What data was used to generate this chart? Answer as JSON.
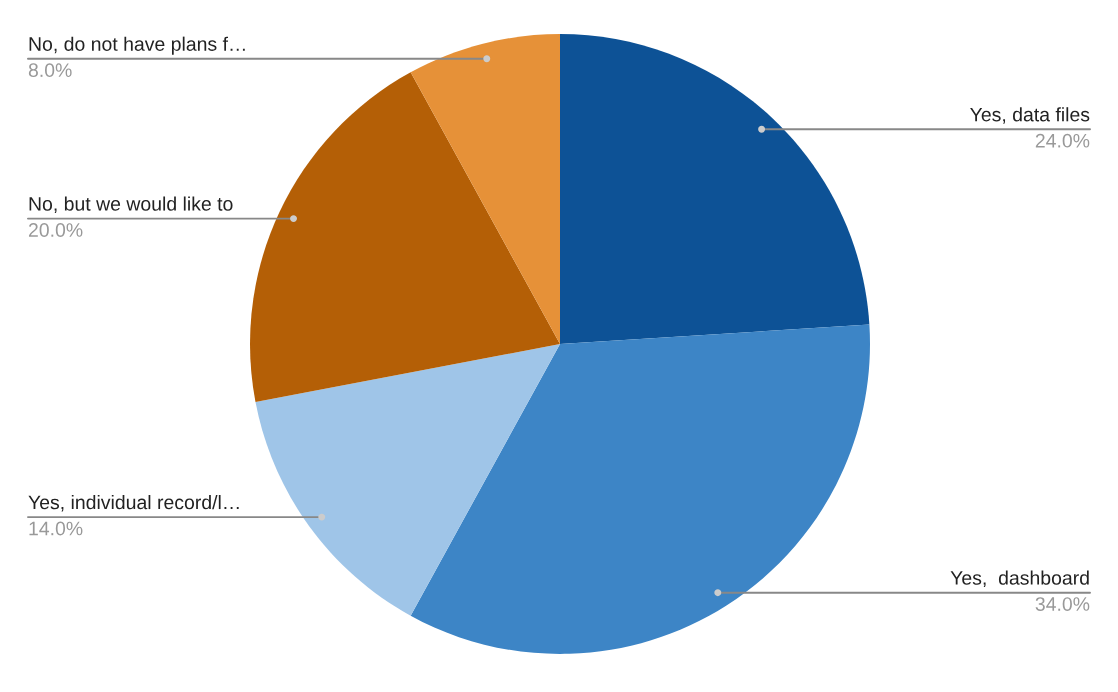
{
  "chart_data": {
    "type": "pie",
    "categories": [
      "Yes, data files",
      "Yes,  dashboard",
      "Yes, individual record/l…",
      "No, but we would like to",
      "No, do not have plans f…"
    ],
    "values": [
      24,
      34,
      14,
      20,
      8
    ],
    "value_labels": [
      "24.0%",
      "34.0%",
      "14.0%",
      "20.0%",
      "8.0%"
    ],
    "colors": [
      "#0d5296",
      "#3d85c6",
      "#9fc5e8",
      "#b45f06",
      "#e69138"
    ],
    "legend": false
  }
}
